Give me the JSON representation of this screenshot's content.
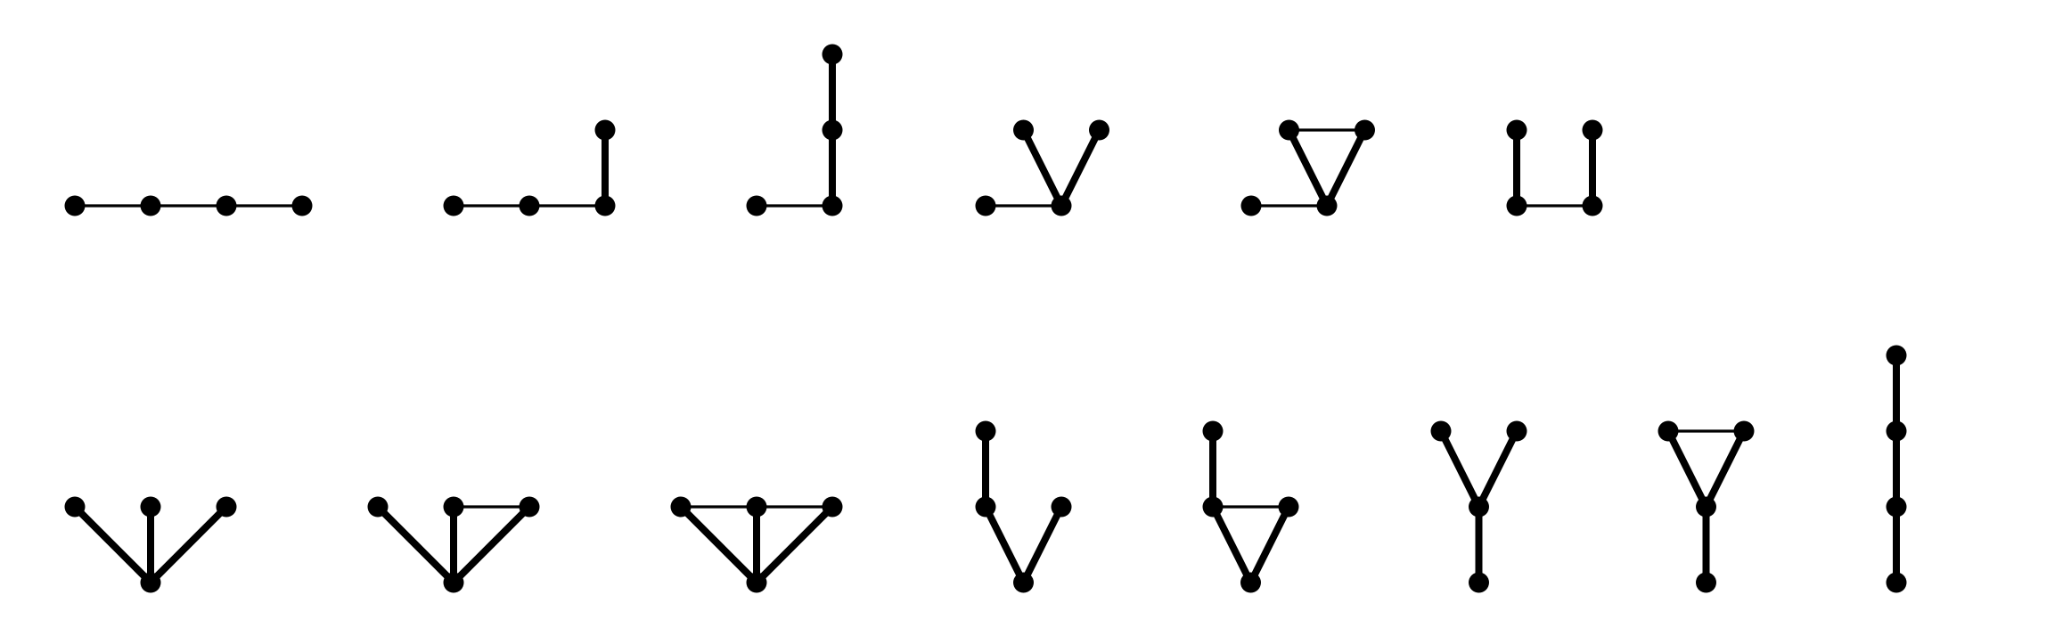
{
  "colors": {
    "background": "#ffffff",
    "ink": "#000000"
  },
  "graphs": [
    {
      "id": "g1",
      "nodes": [
        [
          0,
          0
        ],
        [
          1,
          0
        ],
        [
          2,
          0
        ],
        [
          3,
          0
        ]
      ],
      "edges": [
        [
          0,
          1,
          "thin"
        ],
        [
          1,
          2,
          "thin"
        ],
        [
          2,
          3,
          "thin"
        ]
      ]
    },
    {
      "id": "g2",
      "nodes": [
        [
          0,
          0
        ],
        [
          1,
          0
        ],
        [
          2,
          0
        ],
        [
          2,
          1
        ]
      ],
      "edges": [
        [
          0,
          1,
          "thin"
        ],
        [
          1,
          2,
          "thin"
        ],
        [
          2,
          3,
          "thick"
        ]
      ]
    },
    {
      "id": "g3",
      "nodes": [
        [
          0,
          0
        ],
        [
          1,
          0
        ],
        [
          1,
          1
        ],
        [
          1,
          2
        ]
      ],
      "edges": [
        [
          0,
          1,
          "thin"
        ],
        [
          1,
          2,
          "thick"
        ],
        [
          2,
          3,
          "thick"
        ]
      ]
    },
    {
      "id": "g4",
      "nodes": [
        [
          0,
          0
        ],
        [
          1,
          0
        ],
        [
          0.5,
          1
        ],
        [
          1.5,
          1
        ]
      ],
      "edges": [
        [
          0,
          1,
          "thin"
        ],
        [
          1,
          2,
          "thick"
        ],
        [
          1,
          3,
          "thick"
        ]
      ]
    },
    {
      "id": "g5",
      "nodes": [
        [
          0,
          0
        ],
        [
          1,
          0
        ],
        [
          0.5,
          1
        ],
        [
          1.5,
          1
        ]
      ],
      "edges": [
        [
          0,
          1,
          "thin"
        ],
        [
          1,
          2,
          "thick"
        ],
        [
          1,
          3,
          "thick"
        ],
        [
          2,
          3,
          "thin"
        ]
      ]
    },
    {
      "id": "g6",
      "nodes": [
        [
          0,
          1
        ],
        [
          0,
          0
        ],
        [
          1,
          0
        ],
        [
          1,
          1
        ]
      ],
      "edges": [
        [
          0,
          1,
          "thick"
        ],
        [
          1,
          2,
          "thin"
        ],
        [
          2,
          3,
          "thick"
        ]
      ]
    },
    {
      "id": "g7",
      "nodes": [
        [
          1,
          0
        ],
        [
          0,
          1
        ],
        [
          1,
          1
        ],
        [
          2,
          1
        ]
      ],
      "edges": [
        [
          0,
          1,
          "thick"
        ],
        [
          0,
          2,
          "thick"
        ],
        [
          0,
          3,
          "thick"
        ]
      ]
    },
    {
      "id": "g8",
      "nodes": [
        [
          1,
          0
        ],
        [
          0,
          1
        ],
        [
          1,
          1
        ],
        [
          2,
          1
        ]
      ],
      "edges": [
        [
          0,
          1,
          "thick"
        ],
        [
          0,
          2,
          "thick"
        ],
        [
          0,
          3,
          "thick"
        ],
        [
          2,
          3,
          "thin"
        ]
      ]
    },
    {
      "id": "g9",
      "nodes": [
        [
          1,
          0
        ],
        [
          0,
          1
        ],
        [
          1,
          1
        ],
        [
          2,
          1
        ]
      ],
      "edges": [
        [
          0,
          1,
          "thick"
        ],
        [
          0,
          2,
          "thick"
        ],
        [
          0,
          3,
          "thick"
        ],
        [
          1,
          2,
          "thin"
        ],
        [
          2,
          3,
          "thin"
        ]
      ]
    },
    {
      "id": "g10",
      "nodes": [
        [
          0.5,
          0
        ],
        [
          0,
          1
        ],
        [
          1,
          1
        ],
        [
          0,
          2
        ]
      ],
      "edges": [
        [
          0,
          1,
          "thick"
        ],
        [
          0,
          2,
          "thick"
        ],
        [
          1,
          3,
          "thick"
        ]
      ]
    },
    {
      "id": "g11",
      "nodes": [
        [
          0.5,
          0
        ],
        [
          0,
          1
        ],
        [
          1,
          1
        ],
        [
          0,
          2
        ]
      ],
      "edges": [
        [
          0,
          1,
          "thick"
        ],
        [
          0,
          2,
          "thick"
        ],
        [
          1,
          3,
          "thick"
        ],
        [
          1,
          2,
          "thin"
        ]
      ]
    },
    {
      "id": "g12",
      "nodes": [
        [
          0.5,
          0
        ],
        [
          0.5,
          1
        ],
        [
          0,
          2
        ],
        [
          1,
          2
        ]
      ],
      "edges": [
        [
          0,
          1,
          "thick"
        ],
        [
          1,
          2,
          "thick"
        ],
        [
          1,
          3,
          "thick"
        ]
      ]
    },
    {
      "id": "g13",
      "nodes": [
        [
          0.5,
          0
        ],
        [
          0.5,
          1
        ],
        [
          0,
          2
        ],
        [
          1,
          2
        ]
      ],
      "edges": [
        [
          0,
          1,
          "thick"
        ],
        [
          1,
          2,
          "thick"
        ],
        [
          1,
          3,
          "thick"
        ],
        [
          2,
          3,
          "thin"
        ]
      ]
    },
    {
      "id": "g14",
      "nodes": [
        [
          0,
          0
        ],
        [
          0,
          1
        ],
        [
          0,
          2
        ],
        [
          0,
          3
        ]
      ],
      "edges": [
        [
          0,
          1,
          "thick"
        ],
        [
          1,
          2,
          "thick"
        ],
        [
          2,
          3,
          "thick"
        ]
      ]
    }
  ]
}
